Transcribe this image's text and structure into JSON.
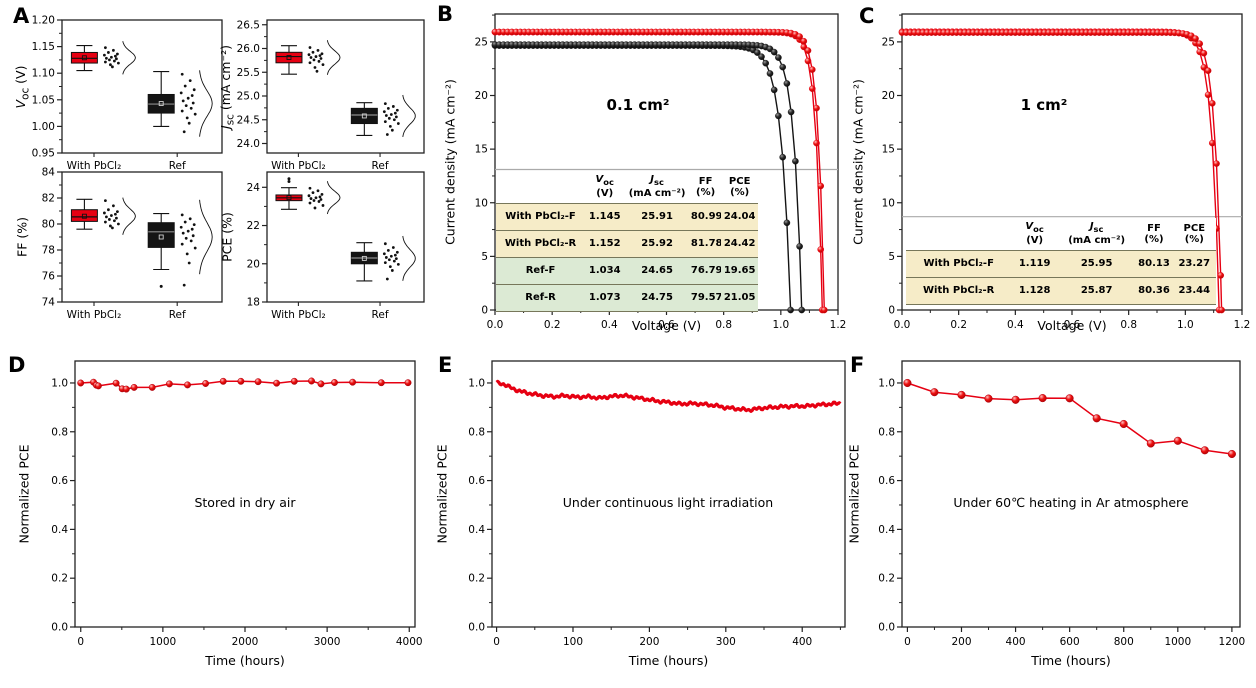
{
  "colors": {
    "red": "#e60012",
    "black": "#141414",
    "frame": "#222222",
    "divider": "#aaaaaa",
    "table_cream": "#f6ecc8",
    "table_green": "#dcead4",
    "table_line": "#77775a"
  },
  "chart_data": [
    {
      "panel": "A",
      "type": "box",
      "categories": [
        "With PbCl₂",
        "Ref"
      ],
      "subplots": [
        {
          "ylabel": "V_{oc} (V)",
          "ylim": [
            0.95,
            1.2
          ],
          "yticks": [
            0.95,
            1.0,
            1.05,
            1.1,
            1.15,
            1.2
          ],
          "ydec": 2,
          "yminor": 0.025,
          "groups": [
            {
              "series": "With PbCl₂",
              "color": "red",
              "whisker_low": 1.105,
              "q1": 1.119,
              "median": 1.128,
              "q3": 1.139,
              "whisker_high": 1.152,
              "mean": 1.129,
              "sd": 0.012,
              "outliers": [],
              "scatter": [
                1.148,
                1.143,
                1.139,
                1.136,
                1.134,
                1.132,
                1.13,
                1.128,
                1.127,
                1.125,
                1.123,
                1.121,
                1.119,
                1.116,
                1.112
              ]
            },
            {
              "series": "Ref",
              "color": "black",
              "whisker_low": 1.0,
              "q1": 1.025,
              "median": 1.042,
              "q3": 1.06,
              "whisker_high": 1.103,
              "mean": 1.043,
              "sd": 0.024,
              "outliers": [],
              "scatter": [
                1.098,
                1.086,
                1.076,
                1.069,
                1.063,
                1.058,
                1.053,
                1.048,
                1.044,
                1.039,
                1.034,
                1.029,
                1.023,
                1.016,
                1.006,
                0.99
              ]
            }
          ]
        },
        {
          "ylabel": "J_{sc} (mA cm⁻²)",
          "ylim": [
            23.8,
            26.6
          ],
          "yticks": [
            24.0,
            24.5,
            25.0,
            25.5,
            26.0,
            26.5
          ],
          "ydec": 1,
          "yminor": 0.25,
          "groups": [
            {
              "series": "With PbCl₂",
              "color": "red",
              "whisker_low": 25.46,
              "q1": 25.7,
              "median": 25.83,
              "q3": 25.92,
              "whisker_high": 26.06,
              "mean": 25.81,
              "sd": 0.14,
              "outliers": [],
              "scatter": [
                26.02,
                25.96,
                25.92,
                25.89,
                25.87,
                25.85,
                25.83,
                25.81,
                25.79,
                25.76,
                25.73,
                25.7,
                25.66,
                25.6,
                25.52
              ]
            },
            {
              "series": "Ref",
              "color": "black",
              "whisker_low": 24.17,
              "q1": 24.42,
              "median": 24.6,
              "q3": 24.74,
              "whisker_high": 24.86,
              "mean": 24.58,
              "sd": 0.17,
              "outliers": [],
              "scatter": [
                24.84,
                24.78,
                24.74,
                24.7,
                24.67,
                24.64,
                24.61,
                24.59,
                24.56,
                24.53,
                24.5,
                24.46,
                24.42,
                24.36,
                24.28,
                24.19
              ]
            }
          ]
        },
        {
          "ylabel": "FF (%)",
          "ylim": [
            74,
            84
          ],
          "yticks": [
            74,
            76,
            78,
            80,
            82,
            84
          ],
          "ydec": 0,
          "yminor": 1,
          "groups": [
            {
              "series": "With PbCl₂",
              "color": "red",
              "whisker_low": 79.6,
              "q1": 80.2,
              "median": 80.55,
              "q3": 81.1,
              "whisker_high": 81.9,
              "mean": 80.6,
              "sd": 0.55,
              "outliers": [],
              "scatter": [
                81.8,
                81.4,
                81.1,
                80.95,
                80.85,
                80.75,
                80.65,
                80.55,
                80.45,
                80.35,
                80.25,
                80.15,
                80.0,
                79.85,
                79.7
              ]
            },
            {
              "series": "Ref",
              "color": "black",
              "whisker_low": 76.5,
              "q1": 78.2,
              "median": 79.4,
              "q3": 80.1,
              "whisker_high": 80.8,
              "mean": 79.0,
              "sd": 1.1,
              "outliers": [
                75.2
              ],
              "scatter": [
                80.7,
                80.4,
                80.15,
                79.95,
                79.75,
                79.6,
                79.45,
                79.3,
                79.1,
                78.9,
                78.7,
                78.45,
                78.15,
                77.7,
                77.0,
                75.3
              ]
            }
          ]
        },
        {
          "ylabel": "PCE (%)",
          "ylim": [
            18,
            24.8
          ],
          "yticks": [
            18,
            20,
            22,
            24
          ],
          "ydec": 0,
          "yminor": 1,
          "groups": [
            {
              "series": "With PbCl₂",
              "color": "red",
              "whisker_low": 22.85,
              "q1": 23.3,
              "median": 23.45,
              "q3": 23.6,
              "whisker_high": 23.98,
              "mean": 23.46,
              "sd": 0.33,
              "outliers": [
                24.3,
                24.45
              ],
              "scatter": [
                23.95,
                23.82,
                23.72,
                23.63,
                23.56,
                23.5,
                23.45,
                23.41,
                23.36,
                23.31,
                23.26,
                23.18,
                23.05,
                22.92
              ]
            },
            {
              "series": "Ref",
              "color": "black",
              "whisker_low": 19.1,
              "q1": 20.0,
              "median": 20.3,
              "q3": 20.6,
              "whisker_high": 21.1,
              "mean": 20.28,
              "sd": 0.45,
              "outliers": [],
              "scatter": [
                21.05,
                20.85,
                20.7,
                20.6,
                20.52,
                20.45,
                20.39,
                20.33,
                20.27,
                20.21,
                20.14,
                20.06,
                19.97,
                19.85,
                19.65,
                19.2
              ]
            }
          ]
        }
      ]
    },
    {
      "panel": "B",
      "type": "line",
      "style": "jv",
      "annotation": "0.1 cm²",
      "xlabel": "Voltage (V)",
      "ylabel": "Current density (mA cm⁻²)",
      "xlim": [
        0,
        1.2
      ],
      "ylim": [
        0,
        27.6
      ],
      "xticks": [
        0.0,
        0.2,
        0.4,
        0.6,
        0.8,
        1.0,
        1.2
      ],
      "yticks": [
        0,
        5,
        10,
        15,
        20,
        25
      ],
      "xdec": 1,
      "ydec": 0,
      "xminor": 0.1,
      "yminor": 2.5,
      "divider_j": 13.1,
      "curves": [
        {
          "name": "With PbCl₂-F",
          "color": "red",
          "jsc": 25.91,
          "voc": 1.145,
          "knee": 0.022
        },
        {
          "name": "With PbCl₂-R",
          "color": "red",
          "jsc": 25.92,
          "voc": 1.152,
          "knee": 0.021
        },
        {
          "name": "Ref-F",
          "color": "black",
          "jsc": 24.65,
          "voc": 1.034,
          "knee": 0.032
        },
        {
          "name": "Ref-R",
          "color": "black",
          "jsc": 24.75,
          "voc": 1.073,
          "knee": 0.027
        }
      ],
      "table": {
        "headers": [
          "V_{oc}\n(V)",
          "J_{sc}\n(mA cm⁻²)",
          "FF\n(%)",
          "PCE\n(%)"
        ],
        "rows": [
          {
            "label": "With PbCl₂-F",
            "values": [
              "1.145",
              "25.91",
              "80.99",
              "24.04"
            ],
            "bg": "cream"
          },
          {
            "label": "With PbCl₂-R",
            "values": [
              "1.152",
              "25.92",
              "81.78",
              "24.42"
            ],
            "bg": "cream"
          },
          {
            "label": "Ref-F",
            "values": [
              "1.034",
              "24.65",
              "76.79",
              "19.65"
            ],
            "bg": "green"
          },
          {
            "label": "Ref-R",
            "values": [
              "1.073",
              "24.75",
              "79.57",
              "21.05"
            ],
            "bg": "green"
          }
        ]
      }
    },
    {
      "panel": "C",
      "type": "line",
      "style": "jv",
      "annotation": "1 cm²",
      "xlabel": "Voltage (V)",
      "ylabel": "Current density (mA cm⁻²)",
      "xlim": [
        0,
        1.2
      ],
      "ylim": [
        0,
        27.6
      ],
      "xticks": [
        0.0,
        0.2,
        0.4,
        0.6,
        0.8,
        1.0,
        1.2
      ],
      "yticks": [
        0,
        5,
        10,
        15,
        20,
        25
      ],
      "xdec": 1,
      "ydec": 0,
      "xminor": 0.1,
      "yminor": 2.5,
      "divider_j": 8.7,
      "curves": [
        {
          "name": "With PbCl₂-F",
          "color": "red",
          "jsc": 25.95,
          "voc": 1.119,
          "knee": 0.026
        },
        {
          "name": "With PbCl₂-R",
          "color": "red",
          "jsc": 25.87,
          "voc": 1.128,
          "knee": 0.024
        }
      ],
      "table": {
        "headers": [
          "V_{oc}\n(V)",
          "J_{sc}\n(mA cm⁻²)",
          "FF\n(%)",
          "PCE\n(%)"
        ],
        "rows": [
          {
            "label": "With PbCl₂-F",
            "values": [
              "1.119",
              "25.95",
              "80.13",
              "23.27"
            ],
            "bg": "cream"
          },
          {
            "label": "With PbCl₂-R",
            "values": [
              "1.128",
              "25.87",
              "80.36",
              "23.44"
            ],
            "bg": "cream"
          }
        ]
      }
    },
    {
      "panel": "D",
      "type": "line",
      "style": "markers",
      "annotation": "Stored in dry air",
      "xlabel": "Time (hours)",
      "ylabel": "Normalized PCE",
      "xlim": [
        -70,
        4070
      ],
      "ylim": [
        0,
        1.09
      ],
      "xticks": [
        0,
        1000,
        2000,
        3000,
        4000
      ],
      "yticks": [
        0.0,
        0.2,
        0.4,
        0.6,
        0.8,
        1.0
      ],
      "xdec": 0,
      "ydec": 1,
      "xminor": 500,
      "yminor": 0.1,
      "points": [
        [
          0,
          1.0
        ],
        [
          155,
          1.003
        ],
        [
          190,
          0.991
        ],
        [
          215,
          0.988
        ],
        [
          430,
          0.999
        ],
        [
          505,
          0.976
        ],
        [
          555,
          0.975
        ],
        [
          650,
          0.982
        ],
        [
          870,
          0.982
        ],
        [
          1080,
          0.996
        ],
        [
          1300,
          0.992
        ],
        [
          1520,
          0.998
        ],
        [
          1735,
          1.007
        ],
        [
          1950,
          1.007
        ],
        [
          2160,
          1.005
        ],
        [
          2385,
          0.999
        ],
        [
          2600,
          1.007
        ],
        [
          2810,
          1.008
        ],
        [
          2925,
          0.996
        ],
        [
          3090,
          1.002
        ],
        [
          3310,
          1.003
        ],
        [
          3660,
          1.001
        ],
        [
          3985,
          1.001
        ]
      ]
    },
    {
      "panel": "E",
      "type": "line",
      "style": "noisy",
      "annotation": "Under continuous light irradiation",
      "xlabel": "Time (hours)",
      "ylabel": "Normalized PCE",
      "xlim": [
        -6,
        456
      ],
      "ylim": [
        0,
        1.09
      ],
      "xticks": [
        0,
        100,
        200,
        300,
        400
      ],
      "yticks": [
        0.0,
        0.2,
        0.4,
        0.6,
        0.8,
        1.0
      ],
      "xdec": 0,
      "ydec": 1,
      "xminor": 50,
      "yminor": 0.1,
      "points": [
        [
          0,
          1.0
        ],
        [
          10,
          0.995
        ],
        [
          20,
          0.978
        ],
        [
          32,
          0.965
        ],
        [
          45,
          0.956
        ],
        [
          60,
          0.948
        ],
        [
          75,
          0.944
        ],
        [
          90,
          0.948
        ],
        [
          105,
          0.942
        ],
        [
          120,
          0.944
        ],
        [
          135,
          0.938
        ],
        [
          150,
          0.945
        ],
        [
          165,
          0.949
        ],
        [
          180,
          0.941
        ],
        [
          195,
          0.934
        ],
        [
          210,
          0.926
        ],
        [
          225,
          0.921
        ],
        [
          240,
          0.914
        ],
        [
          255,
          0.916
        ],
        [
          270,
          0.913
        ],
        [
          285,
          0.908
        ],
        [
          300,
          0.899
        ],
        [
          315,
          0.894
        ],
        [
          330,
          0.889
        ],
        [
          345,
          0.896
        ],
        [
          360,
          0.9
        ],
        [
          375,
          0.903
        ],
        [
          390,
          0.905
        ],
        [
          405,
          0.905
        ],
        [
          420,
          0.91
        ],
        [
          435,
          0.913
        ],
        [
          450,
          0.917
        ]
      ]
    },
    {
      "panel": "F",
      "type": "line",
      "style": "markers",
      "annotation": "Under 60℃ heating in Ar atmosphere",
      "xlabel": "Time (hours)",
      "ylabel": "Normalized PCE",
      "xlim": [
        -20,
        1230
      ],
      "ylim": [
        0,
        1.09
      ],
      "xticks": [
        0,
        200,
        400,
        600,
        800,
        1000,
        1200
      ],
      "yticks": [
        0.0,
        0.2,
        0.4,
        0.6,
        0.8,
        1.0
      ],
      "xdec": 0,
      "ydec": 1,
      "xminor": 100,
      "yminor": 0.1,
      "points": [
        [
          0,
          1.0
        ],
        [
          100,
          0.962
        ],
        [
          200,
          0.951
        ],
        [
          300,
          0.936
        ],
        [
          400,
          0.931
        ],
        [
          500,
          0.938
        ],
        [
          600,
          0.937
        ],
        [
          700,
          0.855
        ],
        [
          800,
          0.832
        ],
        [
          900,
          0.752
        ],
        [
          1000,
          0.763
        ],
        [
          1100,
          0.724
        ],
        [
          1200,
          0.709
        ]
      ]
    }
  ]
}
